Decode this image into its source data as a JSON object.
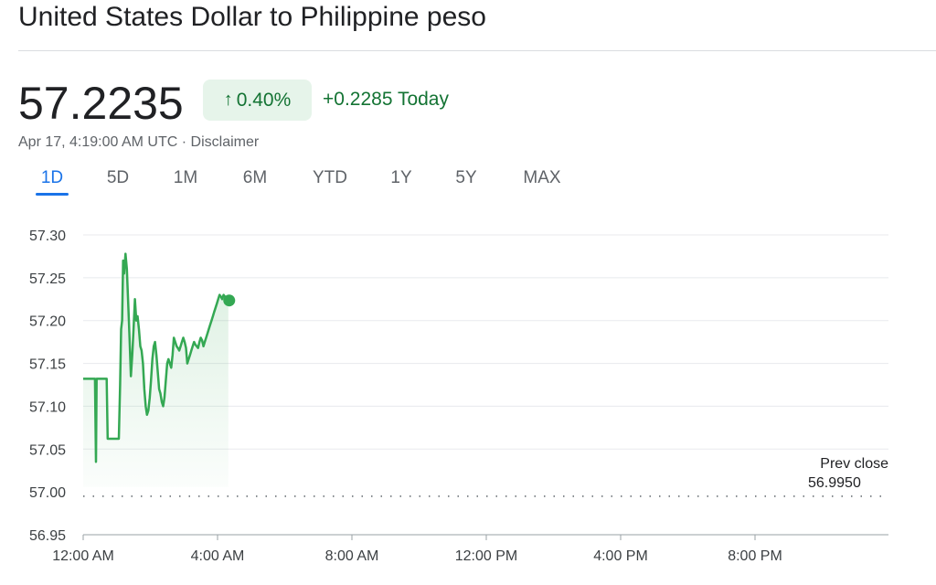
{
  "title": "United States Dollar to Philippine peso",
  "price": "57.2235",
  "change_percent": "0.40%",
  "change_icon": "arrow-up-icon",
  "change_today": "+0.2285 Today",
  "timestamp": "Apr 17, 4:19:00 AM UTC · Disclaimer",
  "tabs": [
    {
      "label": "1D",
      "active": true
    },
    {
      "label": "5D",
      "active": false
    },
    {
      "label": "1M",
      "active": false
    },
    {
      "label": "6M",
      "active": false
    },
    {
      "label": "YTD",
      "active": false
    },
    {
      "label": "1Y",
      "active": false
    },
    {
      "label": "5Y",
      "active": false
    },
    {
      "label": "MAX",
      "active": false
    }
  ],
  "colors": {
    "positive": "#137333",
    "line": "#34a853",
    "accent": "#1a73e8"
  },
  "chart_data": {
    "type": "area",
    "x_unit": "hours since 12:00 AM UTC",
    "ylim": [
      56.95,
      57.3
    ],
    "yticks": [
      "57.30",
      "57.25",
      "57.20",
      "57.15",
      "57.10",
      "57.05",
      "57.00",
      "56.95"
    ],
    "xticks": [
      "12:00 AM",
      "4:00 AM",
      "8:00 AM",
      "12:00 PM",
      "4:00 PM",
      "8:00 PM"
    ],
    "grid": true,
    "prev_close_label": "Prev close",
    "prev_close_value": "56.9950",
    "prev_close": 56.995,
    "x": [
      0,
      0.35,
      0.38,
      0.4,
      0.42,
      0.45,
      0.7,
      0.73,
      0.76,
      0.8,
      0.83,
      0.86,
      0.88,
      0.95,
      1,
      1.03,
      1.06,
      1.1,
      1.13,
      1.16,
      1.19,
      1.22,
      1.26,
      1.3,
      1.33,
      1.36,
      1.38,
      1.42,
      1.46,
      1.5,
      1.54,
      1.58,
      1.62,
      1.66,
      1.7,
      1.74,
      1.78,
      1.82,
      1.86,
      1.9,
      1.94,
      1.98,
      2.02,
      2.06,
      2.1,
      2.14,
      2.18,
      2.22,
      2.26,
      2.3,
      2.34,
      2.38,
      2.42,
      2.46,
      2.5,
      2.54,
      2.58,
      2.62,
      2.66,
      2.7,
      2.74,
      2.78,
      2.82,
      2.86,
      2.9,
      2.94,
      2.98,
      3.02,
      3.06,
      3.1,
      3.14,
      3.18,
      3.22,
      3.26,
      3.3,
      3.34,
      3.38,
      3.42,
      3.46,
      3.5,
      3.54,
      3.58,
      3.62,
      3.66,
      3.7,
      3.74,
      3.78,
      3.82,
      3.86,
      3.9,
      3.94,
      3.98,
      4.02,
      4.06,
      4.1,
      4.14,
      4.18,
      4.22,
      4.26,
      4.3,
      4.32
    ],
    "values": [
      57.132,
      57.132,
      57.035,
      57.132,
      57.132,
      57.132,
      57.132,
      57.062,
      57.062,
      57.062,
      57.062,
      57.062,
      57.062,
      57.062,
      57.062,
      57.062,
      57.062,
      57.125,
      57.19,
      57.2,
      57.27,
      57.255,
      57.278,
      57.26,
      57.23,
      57.2,
      57.18,
      57.135,
      57.16,
      57.19,
      57.225,
      57.2,
      57.205,
      57.19,
      57.17,
      57.165,
      57.15,
      57.12,
      57.1,
      57.09,
      57.095,
      57.11,
      57.13,
      57.155,
      57.17,
      57.175,
      57.16,
      57.14,
      57.12,
      57.115,
      57.105,
      57.1,
      57.11,
      57.13,
      57.15,
      57.155,
      57.15,
      57.145,
      57.16,
      57.18,
      57.175,
      57.17,
      57.168,
      57.165,
      57.17,
      57.175,
      57.18,
      57.175,
      57.168,
      57.15,
      57.155,
      57.16,
      57.165,
      57.17,
      57.175,
      57.172,
      57.17,
      57.168,
      57.175,
      57.18,
      57.177,
      57.17,
      57.175,
      57.18,
      57.185,
      57.19,
      57.195,
      57.2,
      57.205,
      57.21,
      57.215,
      57.22,
      57.225,
      57.23,
      57.228,
      57.225,
      57.23,
      57.228,
      57.225,
      57.2235,
      57.2235
    ]
  }
}
